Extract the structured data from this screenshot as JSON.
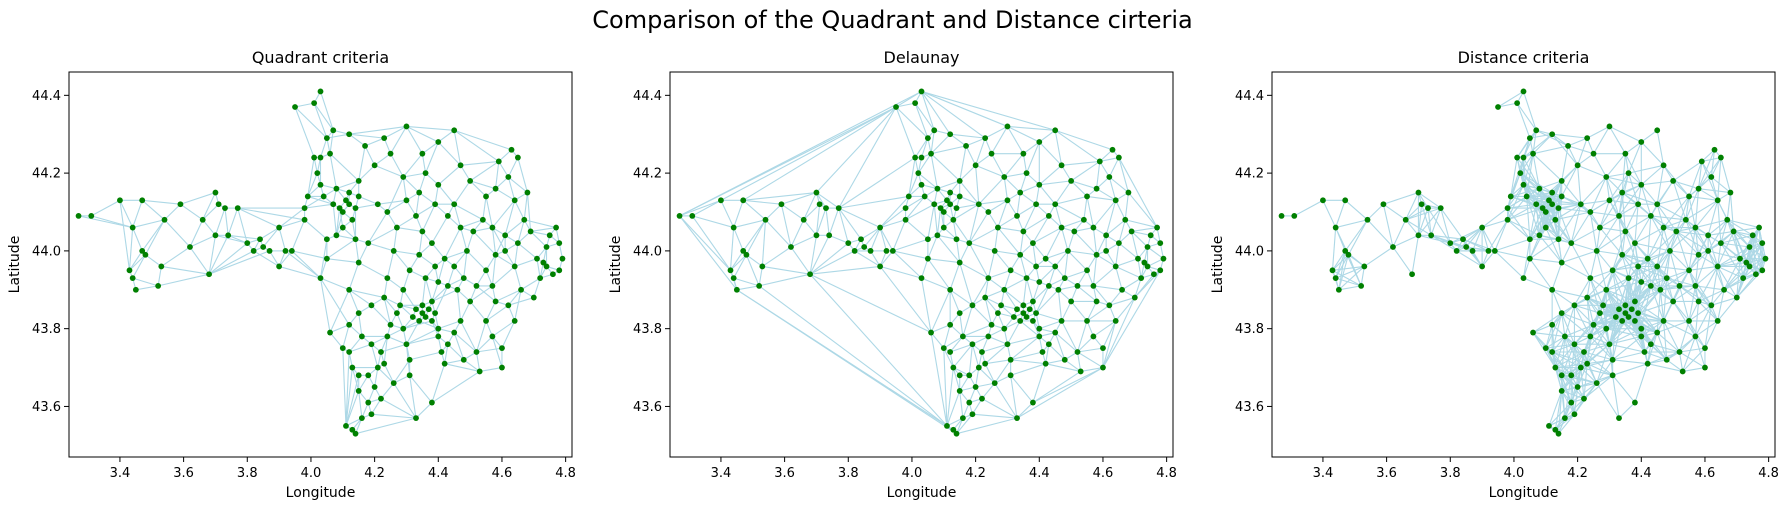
{
  "suptitle": "Comparison of the Quadrant and Distance cirteria",
  "colors": {
    "edge": "#add8e6",
    "node": "#008000",
    "frame": "#000000"
  },
  "chart_data": [
    {
      "type": "scatter",
      "title": "Quadrant criteria",
      "xlabel": "Longitude",
      "ylabel": "Latitude",
      "xlim": [
        3.24,
        4.82
      ],
      "ylim": [
        43.47,
        44.46
      ],
      "xticks": [
        "3.4",
        "3.6",
        "3.8",
        "4.0",
        "4.2",
        "4.4",
        "4.6",
        "4.8"
      ],
      "yticks": [
        "43.6",
        "43.8",
        "44.0",
        "44.2",
        "44.4"
      ],
      "edges_style": "quadrant",
      "nodes": "shared"
    },
    {
      "type": "scatter",
      "title": "Delaunay",
      "xlabel": "Longitude",
      "ylabel": "Latitude",
      "xlim": [
        3.24,
        4.82
      ],
      "ylim": [
        43.47,
        44.46
      ],
      "xticks": [
        "3.4",
        "3.6",
        "3.8",
        "4.0",
        "4.2",
        "4.4",
        "4.6",
        "4.8"
      ],
      "yticks": [
        "43.6",
        "43.8",
        "44.0",
        "44.2",
        "44.4"
      ],
      "edges_style": "delaunay",
      "nodes": "shared"
    },
    {
      "type": "scatter",
      "title": "Distance criteria",
      "xlabel": "Longitude",
      "ylabel": "Latitude",
      "xlim": [
        3.24,
        4.82
      ],
      "ylim": [
        43.47,
        44.46
      ],
      "xticks": [
        "3.4",
        "3.6",
        "3.8",
        "4.0",
        "4.2",
        "4.4",
        "4.6",
        "4.8"
      ],
      "yticks": [
        "43.6",
        "43.8",
        "44.0",
        "44.2",
        "44.4"
      ],
      "edges_style": "distance",
      "nodes": "shared"
    }
  ],
  "nodes": [
    [
      3.27,
      44.09
    ],
    [
      3.31,
      44.09
    ],
    [
      3.4,
      44.13
    ],
    [
      3.44,
      44.06
    ],
    [
      3.47,
      44.0
    ],
    [
      3.48,
      43.99
    ],
    [
      3.43,
      43.95
    ],
    [
      3.44,
      43.93
    ],
    [
      3.45,
      43.9
    ],
    [
      3.52,
      43.91
    ],
    [
      3.53,
      43.96
    ],
    [
      3.47,
      44.13
    ],
    [
      3.54,
      44.08
    ],
    [
      3.59,
      44.12
    ],
    [
      3.62,
      44.01
    ],
    [
      3.66,
      44.08
    ],
    [
      3.68,
      43.94
    ],
    [
      3.7,
      44.04
    ],
    [
      3.7,
      44.15
    ],
    [
      3.71,
      44.12
    ],
    [
      3.73,
      44.11
    ],
    [
      3.74,
      44.04
    ],
    [
      3.77,
      44.11
    ],
    [
      3.8,
      44.02
    ],
    [
      3.82,
      44.0
    ],
    [
      3.84,
      44.03
    ],
    [
      3.85,
      44.01
    ],
    [
      3.87,
      44.0
    ],
    [
      3.9,
      43.96
    ],
    [
      3.9,
      44.06
    ],
    [
      3.92,
      44.0
    ],
    [
      3.94,
      44.0
    ],
    [
      3.95,
      44.37
    ],
    [
      3.98,
      44.11
    ],
    [
      3.98,
      44.08
    ],
    [
      4.01,
      44.38
    ],
    [
      4.03,
      44.41
    ],
    [
      4.01,
      44.24
    ],
    [
      4.03,
      44.24
    ],
    [
      4.02,
      44.2
    ],
    [
      4.03,
      44.17
    ],
    [
      4.04,
      44.14
    ],
    [
      4.05,
      44.29
    ],
    [
      4.06,
      44.25
    ],
    [
      4.07,
      44.12
    ],
    [
      4.08,
      44.16
    ],
    [
      4.09,
      44.11
    ],
    [
      4.1,
      44.1
    ],
    [
      4.11,
      44.13
    ],
    [
      4.12,
      44.12
    ],
    [
      4.12,
      44.15
    ],
    [
      4.13,
      44.08
    ],
    [
      4.14,
      44.11
    ],
    [
      4.15,
      44.14
    ],
    [
      4.15,
      44.18
    ],
    [
      4.1,
      44.06
    ],
    [
      4.08,
      44.04
    ],
    [
      4.05,
      44.03
    ],
    [
      4.05,
      43.98
    ],
    [
      4.03,
      43.93
    ],
    [
      4.06,
      43.79
    ],
    [
      4.1,
      43.75
    ],
    [
      4.12,
      43.74
    ],
    [
      4.13,
      43.7
    ],
    [
      4.15,
      43.68
    ],
    [
      4.15,
      43.64
    ],
    [
      4.18,
      43.68
    ],
    [
      4.18,
      43.61
    ],
    [
      4.19,
      43.58
    ],
    [
      4.11,
      43.55
    ],
    [
      4.13,
      43.54
    ],
    [
      4.14,
      43.53
    ],
    [
      4.16,
      43.57
    ],
    [
      4.2,
      43.65
    ],
    [
      4.21,
      43.7
    ],
    [
      4.22,
      43.74
    ],
    [
      4.24,
      43.78
    ],
    [
      4.25,
      43.81
    ],
    [
      4.27,
      43.84
    ],
    [
      4.28,
      43.86
    ],
    [
      4.29,
      43.8
    ],
    [
      4.3,
      43.76
    ],
    [
      4.31,
      43.72
    ],
    [
      4.31,
      43.68
    ],
    [
      4.32,
      43.83
    ],
    [
      4.33,
      43.85
    ],
    [
      4.34,
      43.82
    ],
    [
      4.35,
      43.84
    ],
    [
      4.35,
      43.86
    ],
    [
      4.36,
      43.83
    ],
    [
      4.37,
      43.85
    ],
    [
      4.38,
      43.82
    ],
    [
      4.38,
      43.87
    ],
    [
      4.39,
      43.84
    ],
    [
      4.4,
      43.8
    ],
    [
      4.4,
      43.78
    ],
    [
      4.41,
      43.74
    ],
    [
      4.42,
      43.71
    ],
    [
      4.43,
      43.76
    ],
    [
      4.45,
      43.79
    ],
    [
      4.47,
      43.82
    ],
    [
      4.48,
      43.72
    ],
    [
      4.38,
      43.61
    ],
    [
      4.33,
      43.57
    ],
    [
      4.24,
      43.93
    ],
    [
      4.26,
      44.0
    ],
    [
      4.27,
      44.06
    ],
    [
      4.24,
      44.1
    ],
    [
      4.21,
      44.12
    ],
    [
      4.2,
      44.22
    ],
    [
      4.23,
      44.29
    ],
    [
      4.3,
      44.32
    ],
    [
      4.35,
      44.25
    ],
    [
      4.4,
      44.28
    ],
    [
      4.45,
      44.31
    ],
    [
      4.47,
      44.22
    ],
    [
      4.5,
      44.18
    ],
    [
      4.55,
      44.14
    ],
    [
      4.58,
      44.16
    ],
    [
      4.59,
      44.23
    ],
    [
      4.63,
      44.26
    ],
    [
      4.65,
      44.24
    ],
    [
      4.62,
      44.19
    ],
    [
      4.64,
      44.13
    ],
    [
      4.67,
      44.08
    ],
    [
      4.65,
      44.02
    ],
    [
      4.61,
      44.04
    ],
    [
      4.58,
      43.99
    ],
    [
      4.55,
      43.95
    ],
    [
      4.52,
      43.91
    ],
    [
      4.48,
      43.93
    ],
    [
      4.45,
      43.96
    ],
    [
      4.42,
      43.98
    ],
    [
      4.38,
      44.02
    ],
    [
      4.35,
      44.05
    ],
    [
      4.33,
      44.09
    ],
    [
      4.3,
      44.13
    ],
    [
      4.29,
      44.19
    ],
    [
      4.34,
      44.15
    ],
    [
      4.39,
      44.12
    ],
    [
      4.43,
      44.09
    ],
    [
      4.47,
      44.06
    ],
    [
      4.51,
      44.05
    ],
    [
      4.54,
      44.08
    ],
    [
      4.57,
      44.06
    ],
    [
      4.61,
      44.0
    ],
    [
      4.64,
      43.96
    ],
    [
      4.66,
      43.9
    ],
    [
      4.62,
      43.86
    ],
    [
      4.58,
      43.87
    ],
    [
      4.55,
      43.82
    ],
    [
      4.57,
      43.78
    ],
    [
      4.6,
      43.75
    ],
    [
      4.64,
      43.82
    ],
    [
      4.7,
      43.88
    ],
    [
      4.72,
      43.93
    ],
    [
      4.73,
      43.97
    ],
    [
      4.74,
      44.01
    ],
    [
      4.75,
      44.04
    ],
    [
      4.77,
      44.06
    ],
    [
      4.78,
      44.02
    ],
    [
      4.79,
      43.98
    ],
    [
      4.78,
      43.95
    ],
    [
      4.76,
      43.94
    ],
    [
      4.74,
      43.96
    ],
    [
      4.71,
      43.98
    ],
    [
      4.69,
      44.05
    ],
    [
      4.68,
      44.15
    ],
    [
      4.6,
      43.7
    ],
    [
      4.53,
      43.69
    ],
    [
      4.52,
      43.74
    ],
    [
      4.5,
      43.87
    ],
    [
      4.46,
      43.9
    ],
    [
      4.43,
      43.91
    ],
    [
      4.4,
      43.92
    ],
    [
      4.36,
      43.93
    ],
    [
      4.31,
      43.95
    ],
    [
      4.29,
      43.9
    ],
    [
      4.23,
      43.88
    ],
    [
      4.19,
      43.86
    ],
    [
      4.15,
      43.84
    ],
    [
      4.12,
      43.81
    ],
    [
      4.16,
      43.78
    ],
    [
      4.19,
      43.76
    ],
    [
      4.23,
      43.71
    ],
    [
      4.26,
      43.66
    ],
    [
      4.22,
      43.62
    ],
    [
      4.12,
      43.9
    ],
    [
      4.15,
      43.97
    ],
    [
      4.18,
      44.02
    ],
    [
      4.14,
      44.03
    ],
    [
      4.34,
      43.99
    ],
    [
      4.39,
      43.96
    ],
    [
      4.49,
      44.0
    ],
    [
      4.57,
      43.91
    ],
    [
      4.45,
      44.12
    ],
    [
      4.4,
      44.17
    ],
    [
      4.36,
      44.2
    ],
    [
      4.25,
      44.25
    ],
    [
      4.17,
      44.27
    ],
    [
      4.12,
      44.3
    ],
    [
      4.07,
      44.31
    ],
    [
      3.99,
      44.14
    ]
  ]
}
